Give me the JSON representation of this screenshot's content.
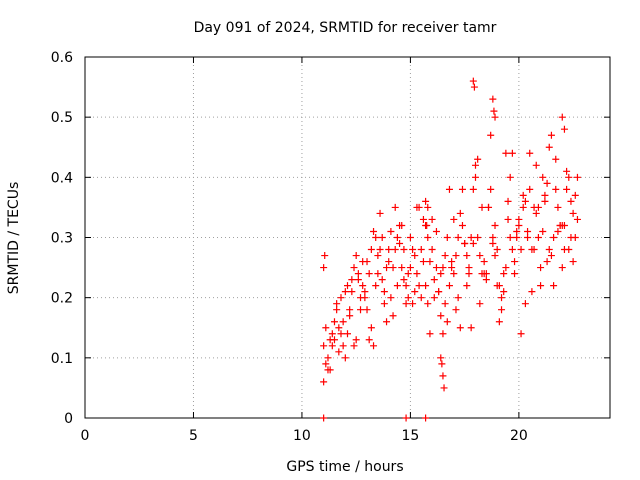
{
  "chart_data": {
    "type": "scatter",
    "title": "Day 091 of 2024, SRMTID for receiver tamr",
    "xlabel": "GPS time / hours",
    "ylabel": "SRMTID / TECUs",
    "xlim": [
      0,
      24.2
    ],
    "ylim": [
      0,
      0.6
    ],
    "xticks": [
      0,
      5,
      10,
      15,
      20
    ],
    "yticks": [
      0,
      0.1,
      0.2,
      0.3,
      0.4,
      0.5,
      0.6
    ],
    "xtick_labels": [
      "0",
      "5",
      "10",
      "15",
      "20"
    ],
    "ytick_labels": [
      "0",
      "0.1",
      "0.2",
      "0.3",
      "0.4",
      "0.5",
      "0.6"
    ],
    "grid": true,
    "marker": "+",
    "series": [
      {
        "name": "SRMTID",
        "color": "#ff0000",
        "x": [
          11.0,
          11.1,
          11.2,
          11.3,
          11.4,
          11.5,
          11.6,
          11.7,
          11.8,
          11.9,
          12.0,
          12.1,
          12.2,
          12.3,
          12.4,
          12.5,
          12.6,
          12.7,
          12.8,
          12.9,
          13.0,
          13.1,
          13.2,
          13.3,
          13.4,
          13.5,
          13.6,
          13.7,
          13.8,
          13.9,
          14.0,
          14.1,
          14.2,
          14.3,
          14.4,
          14.5,
          14.6,
          14.7,
          14.8,
          14.9,
          15.0,
          15.1,
          15.2,
          15.3,
          15.4,
          15.5,
          15.6,
          15.7,
          15.8,
          15.9,
          16.0,
          16.1,
          16.2,
          16.3,
          16.4,
          16.5,
          16.6,
          16.7,
          16.8,
          16.9,
          17.0,
          17.1,
          17.2,
          17.3,
          17.4,
          17.5,
          17.6,
          17.7,
          17.8,
          17.9,
          18.0,
          18.1,
          18.2,
          18.3,
          18.4,
          18.5,
          18.6,
          18.7,
          18.8,
          18.9,
          19.0,
          19.1,
          19.2,
          19.3,
          19.4,
          19.5,
          19.6,
          19.7,
          19.8,
          19.9,
          20.0,
          20.1,
          20.2,
          20.3,
          20.4,
          20.5,
          20.6,
          20.7,
          20.8,
          20.9,
          21.0,
          21.1,
          21.2,
          21.3,
          21.4,
          21.5,
          21.6,
          21.7,
          21.8,
          21.9,
          22.0,
          22.1,
          22.2,
          22.3,
          22.4,
          22.5,
          22.6,
          22.7,
          11.0,
          11.2,
          11.4,
          11.6,
          11.8,
          12.0,
          12.2,
          12.4,
          12.6,
          12.8,
          13.0,
          13.2,
          13.4,
          13.6,
          13.8,
          14.0,
          14.2,
          14.4,
          14.6,
          14.8,
          15.0,
          15.2,
          15.4,
          15.6,
          15.8,
          16.0,
          16.2,
          16.4,
          16.6,
          16.8,
          17.0,
          17.2,
          17.4,
          17.6,
          17.8,
          18.0,
          18.2,
          18.4,
          18.6,
          18.8,
          19.0,
          19.2,
          19.4,
          19.6,
          19.8,
          20.0,
          20.2,
          20.4,
          20.6,
          20.8,
          21.0,
          21.2,
          21.4,
          21.6,
          21.8,
          22.0,
          22.2,
          22.4,
          22.6,
          11.1,
          11.3,
          11.5,
          11.7,
          11.9,
          12.1,
          12.3,
          12.5,
          12.7,
          12.9,
          13.1,
          13.3,
          13.5,
          13.7,
          13.9,
          14.1,
          14.3,
          14.5,
          14.7,
          14.9,
          15.1,
          15.3,
          15.5,
          15.7,
          15.9,
          16.1,
          16.3,
          16.5,
          16.7,
          16.9,
          17.1,
          17.3,
          17.5,
          17.7,
          17.9,
          18.1,
          18.3,
          18.5,
          18.7,
          18.9,
          19.1,
          19.3,
          19.5,
          19.7,
          19.9,
          20.1,
          20.3,
          20.5,
          20.7,
          20.9,
          21.1,
          21.3,
          21.5,
          21.7,
          21.9,
          22.1,
          22.3,
          22.5,
          22.7,
          17.9,
          17.95,
          18.8,
          18.85,
          18.9,
          22.0,
          22.1,
          16.4,
          16.45,
          16.5,
          16.55,
          11.0,
          11.05,
          15.7,
          15.75,
          15.8,
          11.0,
          14.8,
          15.7
        ],
        "y": [
          0.12,
          0.09,
          0.1,
          0.08,
          0.14,
          0.13,
          0.18,
          0.15,
          0.2,
          0.16,
          0.21,
          0.22,
          0.18,
          0.23,
          0.25,
          0.27,
          0.23,
          0.2,
          0.22,
          0.21,
          0.26,
          0.24,
          0.28,
          0.31,
          0.22,
          0.24,
          0.28,
          0.3,
          0.21,
          0.25,
          0.26,
          0.2,
          0.25,
          0.28,
          0.3,
          0.29,
          0.25,
          0.23,
          0.22,
          0.2,
          0.25,
          0.28,
          0.27,
          0.24,
          0.22,
          0.2,
          0.26,
          0.32,
          0.35,
          0.26,
          0.28,
          0.23,
          0.25,
          0.21,
          0.24,
          0.25,
          0.27,
          0.3,
          0.22,
          0.26,
          0.33,
          0.27,
          0.3,
          0.34,
          0.32,
          0.29,
          0.22,
          0.24,
          0.3,
          0.38,
          0.42,
          0.3,
          0.27,
          0.24,
          0.26,
          0.23,
          0.35,
          0.38,
          0.3,
          0.32,
          0.28,
          0.22,
          0.18,
          0.24,
          0.25,
          0.33,
          0.3,
          0.28,
          0.26,
          0.3,
          0.33,
          0.28,
          0.35,
          0.36,
          0.3,
          0.38,
          0.28,
          0.35,
          0.34,
          0.3,
          0.25,
          0.4,
          0.37,
          0.39,
          0.28,
          0.27,
          0.3,
          0.38,
          0.35,
          0.32,
          0.25,
          0.32,
          0.38,
          0.28,
          0.3,
          0.34,
          0.37,
          0.33,
          0.06,
          0.08,
          0.12,
          0.19,
          0.14,
          0.1,
          0.17,
          0.12,
          0.24,
          0.26,
          0.18,
          0.15,
          0.3,
          0.34,
          0.19,
          0.28,
          0.17,
          0.22,
          0.32,
          0.19,
          0.3,
          0.21,
          0.35,
          0.33,
          0.19,
          0.33,
          0.31,
          0.17,
          0.19,
          0.38,
          0.24,
          0.2,
          0.38,
          0.27,
          0.15,
          0.4,
          0.19,
          0.24,
          0.35,
          0.29,
          0.22,
          0.2,
          0.44,
          0.4,
          0.24,
          0.32,
          0.37,
          0.31,
          0.21,
          0.42,
          0.22,
          0.36,
          0.45,
          0.22,
          0.31,
          0.32,
          0.41,
          0.36,
          0.3,
          0.15,
          0.13,
          0.16,
          0.11,
          0.12,
          0.14,
          0.21,
          0.13,
          0.18,
          0.2,
          0.13,
          0.12,
          0.27,
          0.23,
          0.16,
          0.31,
          0.35,
          0.32,
          0.28,
          0.24,
          0.19,
          0.35,
          0.28,
          0.22,
          0.14,
          0.2,
          0.21,
          0.14,
          0.16,
          0.25,
          0.18,
          0.15,
          0.29,
          0.25,
          0.29,
          0.43,
          0.35,
          0.24,
          0.47,
          0.27,
          0.16,
          0.21,
          0.36,
          0.44,
          0.31,
          0.14,
          0.19,
          0.44,
          0.28,
          0.35,
          0.31,
          0.26,
          0.47,
          0.43,
          0.32,
          0.28,
          0.4,
          0.26,
          0.4,
          0.56,
          0.55,
          0.53,
          0.51,
          0.5,
          0.5,
          0.48,
          0.1,
          0.09,
          0.07,
          0.05,
          0.25,
          0.27,
          0.36,
          0.32,
          0.3,
          0.0,
          0.0,
          0.0
        ]
      }
    ]
  }
}
